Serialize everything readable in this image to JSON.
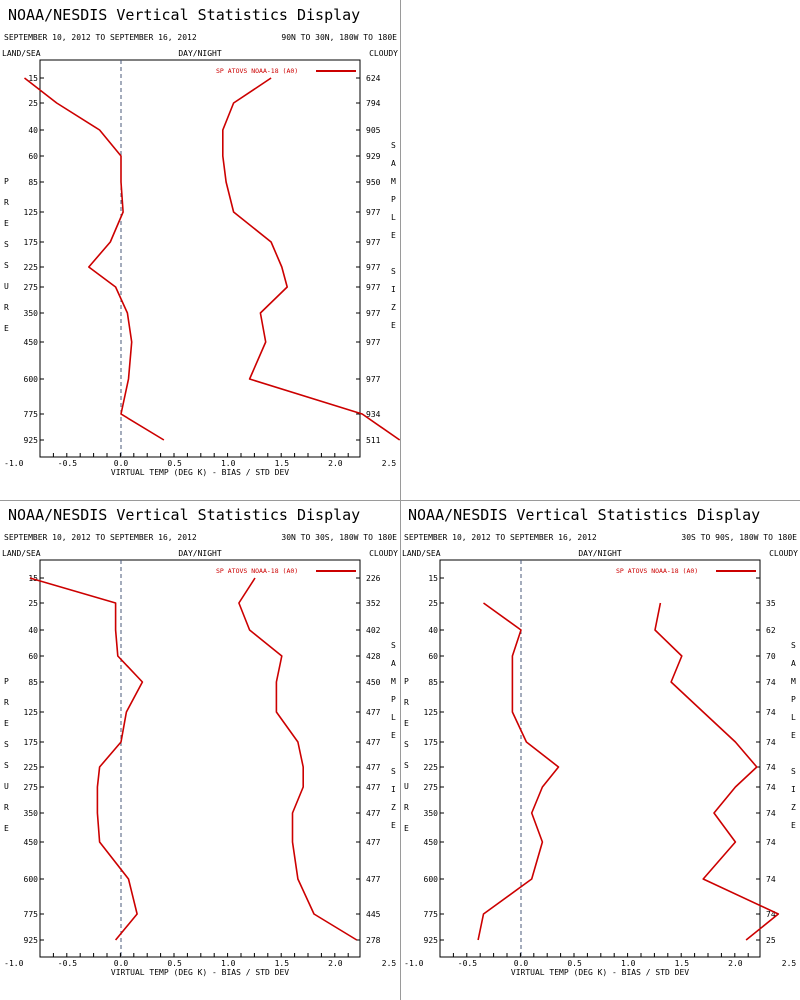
{
  "chart_data": [
    {
      "type": "line",
      "title": "NOAA/NESDIS Vertical Statistics Display",
      "date_range": "SEPTEMBER 10, 2012 TO SEPTEMBER 16, 2012",
      "region": "90N TO 30N, 180W TO 180E",
      "header_left": "LAND/SEA",
      "header_mid": "DAY/NIGHT",
      "header_right": "CLOUDY",
      "ylabel": "PRESSURE",
      "right_label": "SAMPLE SIZE",
      "xlabel": "VIRTUAL TEMP (DEG K) - BIAS / STD DEV",
      "xlim": [
        -1.5,
        4.5
      ],
      "xticks": [
        "-1.0",
        "-0.5",
        "0.0",
        "0.5",
        "1.0",
        "1.5",
        "2.0",
        "2.5",
        "3.0",
        "3.5",
        "4.0"
      ],
      "pressure_levels": [
        "15",
        "25",
        "40",
        "60",
        "85",
        "125",
        "175",
        "225",
        "275",
        "350",
        "450",
        "600",
        "775",
        "925"
      ],
      "sample_sizes": [
        "624",
        "794",
        "905",
        "929",
        "950",
        "977",
        "977",
        "977",
        "977",
        "977",
        "977",
        "977",
        "934",
        "511"
      ],
      "legend": "SP ATOVS NOAA-18 (A0)",
      "series": [
        {
          "name": "bias",
          "values": [
            -0.9,
            -0.6,
            -0.2,
            0.0,
            0.0,
            0.02,
            -0.1,
            -0.3,
            -0.05,
            0.06,
            0.1,
            0.07,
            0.0,
            0.4
          ]
        },
        {
          "name": "std dev",
          "values": [
            1.4,
            1.05,
            0.95,
            0.95,
            0.98,
            1.05,
            1.4,
            1.5,
            1.55,
            1.3,
            1.35,
            1.2,
            2.25,
            2.6
          ]
        }
      ],
      "colors": {
        "line": "#cc0000",
        "zero_line": "#4a5a7a"
      }
    },
    {
      "type": "line",
      "title": "NOAA/NESDIS Vertical Statistics Display",
      "date_range": "SEPTEMBER 10, 2012 TO SEPTEMBER 16, 2012",
      "region": "30N TO 30S, 180W TO 180E",
      "header_left": "LAND/SEA",
      "header_mid": "DAY/NIGHT",
      "header_right": "CLOUDY",
      "ylabel": "PRESSURE",
      "right_label": "SAMPLE SIZE",
      "xlabel": "VIRTUAL TEMP (DEG K) - BIAS / STD DEV",
      "xlim": [
        -1.5,
        4.5
      ],
      "xticks": [
        "-1.0",
        "-0.5",
        "0.0",
        "0.5",
        "1.0",
        "1.5",
        "2.0",
        "2.5",
        "3.0",
        "3.5",
        "4.0"
      ],
      "pressure_levels": [
        "15",
        "25",
        "40",
        "60",
        "85",
        "125",
        "175",
        "225",
        "275",
        "350",
        "450",
        "600",
        "775",
        "925"
      ],
      "sample_sizes": [
        "226",
        "352",
        "402",
        "428",
        "450",
        "477",
        "477",
        "477",
        "477",
        "477",
        "477",
        "477",
        "445",
        "278"
      ],
      "legend": "SP ATOVS NOAA-18 (A0)",
      "series": [
        {
          "name": "bias",
          "values": [
            -0.85,
            -0.05,
            -0.05,
            -0.03,
            0.2,
            0.05,
            0.0,
            -0.2,
            -0.22,
            -0.22,
            -0.2,
            0.07,
            0.15,
            -0.05
          ]
        },
        {
          "name": "std dev",
          "values": [
            1.25,
            1.1,
            1.2,
            1.5,
            1.45,
            1.45,
            1.65,
            1.7,
            1.7,
            1.6,
            1.6,
            1.65,
            1.8,
            2.2
          ]
        }
      ],
      "colors": {
        "line": "#cc0000",
        "zero_line": "#4a5a7a"
      }
    },
    {
      "type": "line",
      "title": "NOAA/NESDIS Vertical Statistics Display",
      "date_range": "SEPTEMBER 10, 2012 TO SEPTEMBER 16, 2012",
      "region": "30S TO 90S, 180W TO 180E",
      "header_left": "LAND/SEA",
      "header_mid": "DAY/NIGHT",
      "header_right": "CLOUDY",
      "ylabel": "PRESSURE",
      "right_label": "SAMPLE SIZE",
      "xlabel": "VIRTUAL TEMP (DEG K) - BIAS / STD DEV",
      "xlim": [
        -1.5,
        4.5
      ],
      "xticks": [
        "-1.0",
        "-0.5",
        "0.0",
        "0.5",
        "1.0",
        "1.5",
        "2.0",
        "2.5",
        "3.0",
        "3.5",
        "4.0"
      ],
      "pressure_levels": [
        "15",
        "25",
        "40",
        "60",
        "85",
        "125",
        "175",
        "225",
        "275",
        "350",
        "450",
        "600",
        "775",
        "925"
      ],
      "sample_sizes": [
        "",
        "35",
        "62",
        "70",
        "74",
        "74",
        "74",
        "74",
        "74",
        "74",
        "74",
        "74",
        "74",
        "25"
      ],
      "legend": "SP ATOVS NOAA-18 (A0)",
      "series": [
        {
          "name": "bias",
          "values": [
            null,
            -0.35,
            0.0,
            -0.08,
            -0.08,
            -0.08,
            0.05,
            0.35,
            0.2,
            0.1,
            0.2,
            0.1,
            -0.35,
            -0.4
          ]
        },
        {
          "name": "std dev",
          "values": [
            null,
            1.3,
            1.25,
            1.5,
            1.4,
            1.7,
            2.0,
            2.2,
            2.0,
            1.8,
            2.0,
            1.7,
            2.4,
            2.1
          ]
        }
      ],
      "colors": {
        "line": "#cc0000",
        "zero_line": "#4a5a7a"
      }
    }
  ]
}
